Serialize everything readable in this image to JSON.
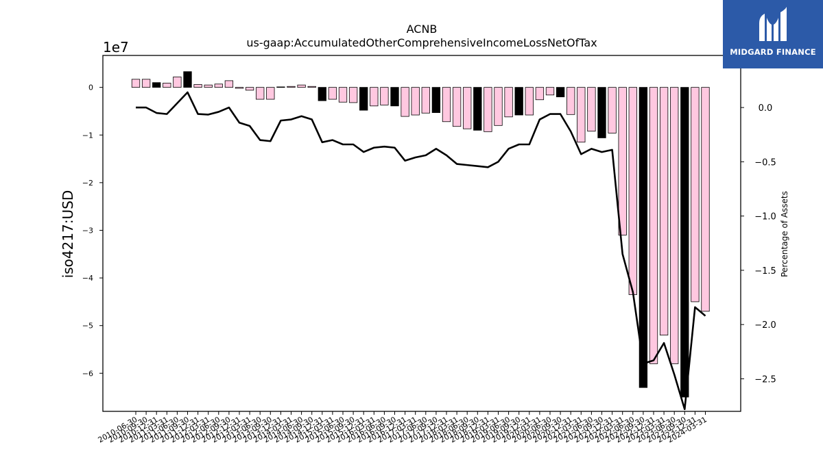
{
  "brand": {
    "name": "MIDGARD FINANCE",
    "mark_icon": "midgard-m-logo-icon",
    "background": "#2c5aa8"
  },
  "chart_data": {
    "type": "bar",
    "title": "ACNB",
    "subtitle": "us-gaap:AccumulatedOtherComprehensiveIncomeLossNetOfTax",
    "ylabel": "iso4217:USD",
    "y2label": "Percentage of Assets",
    "y_scale_label": "1e7",
    "ylim": [
      -68000000,
      6700000
    ],
    "y2lim": [
      -2.8,
      0.48
    ],
    "yticks": [
      0,
      -10000000,
      -20000000,
      -30000000,
      -40000000,
      -50000000,
      -60000000
    ],
    "ytick_labels": [
      "0",
      "−1",
      "−2",
      "−3",
      "−4",
      "−5",
      "−6"
    ],
    "y2ticks": [
      0.0,
      -0.5,
      -1.0,
      -1.5,
      -2.0,
      -2.5
    ],
    "y2tick_labels": [
      "0.0",
      "−0.5",
      "−1.0",
      "−1.5",
      "−2.0",
      "−2.5"
    ],
    "categories": [
      "2010-06-30",
      "2010-09-30",
      "2010-12-31",
      "2011-03-31",
      "2011-06-30",
      "2011-09-30",
      "2011-12-31",
      "2012-03-31",
      "2012-06-30",
      "2012-09-30",
      "2012-12-31",
      "2013-03-31",
      "2013-06-30",
      "2013-09-30",
      "2013-12-31",
      "2014-03-31",
      "2014-06-30",
      "2014-09-30",
      "2014-12-31",
      "2015-03-31",
      "2015-06-30",
      "2015-09-30",
      "2015-12-31",
      "2016-03-31",
      "2016-06-30",
      "2016-09-30",
      "2016-12-31",
      "2017-03-31",
      "2017-06-30",
      "2017-09-30",
      "2017-12-31",
      "2018-03-31",
      "2018-06-30",
      "2018-09-30",
      "2018-12-31",
      "2019-03-31",
      "2019-06-30",
      "2019-09-30",
      "2019-12-31",
      "2020-03-31",
      "2020-06-30",
      "2020-09-30",
      "2020-12-31",
      "2021-03-31",
      "2021-06-30",
      "2021-09-30",
      "2021-12-31",
      "2022-03-31",
      "2022-06-30",
      "2022-09-30",
      "2022-12-31",
      "2023-03-31",
      "2023-06-30",
      "2023-09-30",
      "2023-12-31",
      "2024-03-31"
    ],
    "series": [
      {
        "kind": "bar",
        "values": [
          1700000,
          1700000,
          1000000,
          900000,
          2200000,
          3300000,
          600000,
          500000,
          700000,
          1400000,
          -200000,
          -600000,
          -2500000,
          -2500000,
          100000,
          200000,
          500000,
          200000,
          -2800000,
          -2500000,
          -3100000,
          -3200000,
          -4800000,
          -3900000,
          -3700000,
          -3900000,
          -6100000,
          -5800000,
          -5400000,
          -5300000,
          -7200000,
          -8200000,
          -8700000,
          -9000000,
          -9300000,
          -8000000,
          -6200000,
          -5800000,
          -5800000,
          -2600000,
          -1600000,
          -2000000,
          -5700000,
          -11500000,
          -9200000,
          -10600000,
          -9600000,
          -31000000,
          -43500000,
          -63000000,
          -58000000,
          -52000000,
          -58000000,
          -65000000,
          -45000000,
          -47000000
        ],
        "highlight_color": "#000000",
        "base_color": "#ffc8e0",
        "highlight_categories": [
          "2010-12-31",
          "2011-09-30",
          "2014-12-31",
          "2015-12-31",
          "2016-09-30",
          "2017-09-30",
          "2018-09-30",
          "2019-09-30",
          "2020-09-30",
          "2021-09-30",
          "2022-09-30",
          "2023-09-30"
        ]
      },
      {
        "kind": "line",
        "axis": "right",
        "color": "#000000",
        "values": [
          0.0,
          0.0,
          -0.05,
          -0.06,
          0.04,
          0.14,
          -0.06,
          -0.065,
          -0.04,
          0.0,
          -0.14,
          -0.17,
          -0.3,
          -0.31,
          -0.12,
          -0.11,
          -0.08,
          -0.11,
          -0.32,
          -0.3,
          -0.34,
          -0.34,
          -0.41,
          -0.37,
          -0.36,
          -0.37,
          -0.49,
          -0.46,
          -0.44,
          -0.38,
          -0.44,
          -0.52,
          -0.53,
          -0.54,
          -0.55,
          -0.5,
          -0.38,
          -0.34,
          -0.34,
          -0.11,
          -0.06,
          -0.06,
          -0.22,
          -0.43,
          -0.38,
          -0.41,
          -0.39,
          -1.35,
          -1.7,
          -2.36,
          -2.33,
          -2.17,
          -2.46,
          -2.78,
          -1.84,
          -1.92
        ]
      }
    ],
    "legend": "none",
    "grid": false
  }
}
